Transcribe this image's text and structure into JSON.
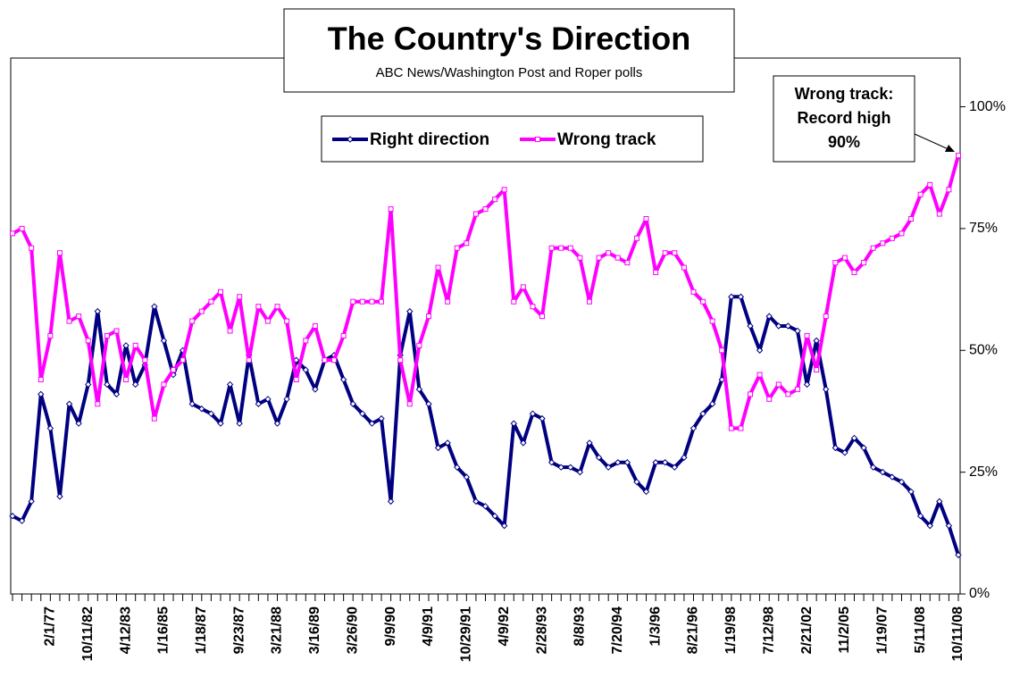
{
  "chart_data": {
    "type": "line",
    "title": "The Country's Direction",
    "subtitle": "ABC News/Washington Post and Roper polls",
    "annotation": [
      "Wrong track:",
      "Record high",
      "90%"
    ],
    "categories": [
      null,
      null,
      null,
      null,
      "2/1/77",
      null,
      null,
      null,
      "10/11/82",
      null,
      null,
      null,
      "4/12/83",
      null,
      null,
      null,
      "1/16/85",
      null,
      null,
      null,
      "1/18/87",
      null,
      null,
      null,
      "9/23/87",
      null,
      null,
      null,
      "3/21/88",
      null,
      null,
      null,
      "3/16/89",
      null,
      null,
      null,
      "3/26/90",
      null,
      null,
      null,
      "9/9/90",
      null,
      null,
      null,
      "4/9/91",
      null,
      null,
      null,
      "10/29/91",
      null,
      null,
      null,
      "4/9/92",
      null,
      null,
      null,
      "2/28/93",
      null,
      null,
      null,
      "8/8/93",
      null,
      null,
      null,
      "7/20/94",
      null,
      null,
      null,
      "1/3/96",
      null,
      null,
      null,
      "8/21/96",
      null,
      null,
      null,
      "1/19/98",
      null,
      null,
      null,
      "7/12/98",
      null,
      null,
      null,
      "2/21/02",
      null,
      null,
      null,
      "11/2/05",
      null,
      null,
      null,
      "1/19/07",
      null,
      null,
      null,
      "5/11/08",
      null,
      null,
      null,
      "10/11/08"
    ],
    "series": [
      {
        "name": "Right direction",
        "color": "#000080",
        "values": [
          16,
          15,
          19,
          41,
          34,
          20,
          39,
          35,
          43,
          58,
          43,
          41,
          51,
          43,
          47,
          59,
          52,
          45,
          50,
          39,
          38,
          37,
          35,
          43,
          35,
          49,
          39,
          40,
          35,
          40,
          48,
          46,
          42,
          48,
          49,
          44,
          39,
          37,
          35,
          36,
          19,
          49,
          58,
          42,
          39,
          30,
          31,
          26,
          24,
          19,
          18,
          16,
          14,
          35,
          31,
          37,
          36,
          27,
          26,
          26,
          25,
          31,
          28,
          26,
          27,
          27,
          23,
          21,
          27,
          27,
          26,
          28,
          34,
          37,
          39,
          44,
          61,
          61,
          55,
          50,
          57,
          55,
          55,
          54,
          43,
          52,
          42,
          30,
          29,
          32,
          30,
          26,
          25,
          24,
          23,
          21,
          16,
          14,
          19,
          14,
          8
        ]
      },
      {
        "name": "Wrong track",
        "color": "#ff00ff",
        "values": [
          74,
          75,
          71,
          44,
          53,
          70,
          56,
          57,
          52,
          39,
          53,
          54,
          44,
          51,
          48,
          36,
          43,
          46,
          48,
          56,
          58,
          60,
          62,
          54,
          61,
          48,
          59,
          56,
          59,
          56,
          44,
          52,
          55,
          48,
          48,
          53,
          60,
          60,
          60,
          60,
          79,
          48,
          39,
          51,
          57,
          67,
          60,
          71,
          72,
          78,
          79,
          81,
          83,
          60,
          63,
          59,
          57,
          71,
          71,
          71,
          69,
          60,
          69,
          70,
          69,
          68,
          73,
          77,
          66,
          70,
          70,
          67,
          62,
          60,
          56,
          50,
          34,
          34,
          41,
          45,
          40,
          43,
          41,
          42,
          53,
          46,
          57,
          68,
          69,
          66,
          68,
          71,
          72,
          73,
          74,
          77,
          82,
          84,
          78,
          83,
          90
        ]
      }
    ],
    "ylim": [
      0,
      110
    ],
    "yticks": [
      {
        "value": 0,
        "label": "0%"
      },
      {
        "value": 25,
        "label": "25%"
      },
      {
        "value": 50,
        "label": "50%"
      },
      {
        "value": 75,
        "label": "75%"
      },
      {
        "value": 100,
        "label": "100%"
      }
    ],
    "grid": false
  }
}
